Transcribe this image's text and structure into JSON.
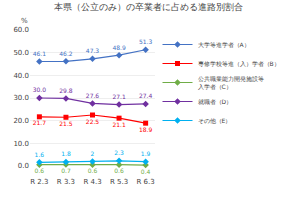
{
  "chart_data": {
    "type": "line",
    "title": "本県（公立のみ）の卒業者に占める進路別割合",
    "ylabel": "%",
    "categories": [
      "R 2.3",
      "R 3.3",
      "R 4.3",
      "R 5.3",
      "R 6.3"
    ],
    "series": [
      {
        "name": "大学等進学者（A）",
        "color": "#4472C4",
        "marker": "diamond",
        "values": [
          46.1,
          46.2,
          47.3,
          48.9,
          51.3
        ]
      },
      {
        "name": "専修学校等進（入）学者（B）",
        "color": "#FF0000",
        "marker": "square",
        "values": [
          21.7,
          21.5,
          22.5,
          21.1,
          18.9
        ]
      },
      {
        "name": "公共職業能力開発施設等\n入学者（C）",
        "color": "#70AD47",
        "marker": "diamond",
        "values": [
          0.6,
          0.7,
          0.6,
          0.6,
          0.4
        ]
      },
      {
        "name": "就職者（D）",
        "color": "#7030A0",
        "marker": "diamond",
        "values": [
          30.0,
          29.8,
          27.6,
          27.1,
          27.4
        ],
        "value_labels": [
          "30.0",
          "29.8",
          "27.6",
          "27.1",
          "27.4"
        ]
      },
      {
        "name": "その他（E）",
        "color": "#00B0F0",
        "marker": "diamond",
        "values": [
          1.6,
          1.8,
          2.0,
          2.3,
          1.9
        ]
      }
    ],
    "ylim": [
      0,
      60
    ],
    "yticks": [
      {
        "value": 0,
        "label": "0.0"
      },
      {
        "value": 10,
        "label": "10.0"
      },
      {
        "value": 20,
        "label": "20.0"
      },
      {
        "value": 30,
        "label": "30.0"
      },
      {
        "value": 40,
        "label": "40.0"
      },
      {
        "value": 50,
        "label": "50.0"
      },
      {
        "value": 60,
        "label": "60.0"
      }
    ],
    "grid": true,
    "legend": "right",
    "data_labels": true
  }
}
